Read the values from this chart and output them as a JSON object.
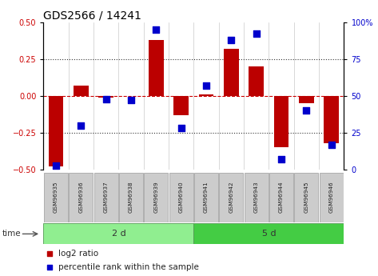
{
  "title": "GDS2566 / 14241",
  "samples": [
    "GSM96935",
    "GSM96936",
    "GSM96937",
    "GSM96938",
    "GSM96939",
    "GSM96940",
    "GSM96941",
    "GSM96942",
    "GSM96943",
    "GSM96944",
    "GSM96945",
    "GSM96946"
  ],
  "log2_ratio": [
    -0.48,
    0.07,
    -0.01,
    0.0,
    0.38,
    -0.13,
    0.01,
    0.32,
    0.2,
    -0.35,
    -0.05,
    -0.32
  ],
  "percentile_rank": [
    3,
    30,
    48,
    47,
    95,
    28,
    57,
    88,
    92,
    7,
    40,
    17
  ],
  "groups": [
    {
      "label": "2 d",
      "start": 0,
      "end": 6,
      "color": "#90EE90"
    },
    {
      "label": "5 d",
      "start": 6,
      "end": 12,
      "color": "#32CD32"
    }
  ],
  "bar_color": "#BB0000",
  "dot_color": "#0000CC",
  "ylim_left": [
    -0.5,
    0.5
  ],
  "ylim_right": [
    0,
    100
  ],
  "yticks_left": [
    -0.5,
    -0.25,
    0,
    0.25,
    0.5
  ],
  "yticks_right": [
    0,
    25,
    50,
    75,
    100
  ],
  "hline_color": "#CC0000",
  "dotted_color": "#333333",
  "tick_label_color_left": "#CC0000",
  "tick_label_color_right": "#0000CC",
  "bar_width": 0.6,
  "dot_size": 28,
  "sample_box_color": "#CCCCCC",
  "sample_box_edge": "#999999",
  "time_label": "time",
  "legend_red_label": "log2 ratio",
  "legend_blue_label": "percentile rank within the sample",
  "group_band_color_light": "#90EE90",
  "group_band_color_dark": "#44CC44",
  "group_band_edge": "#559955"
}
